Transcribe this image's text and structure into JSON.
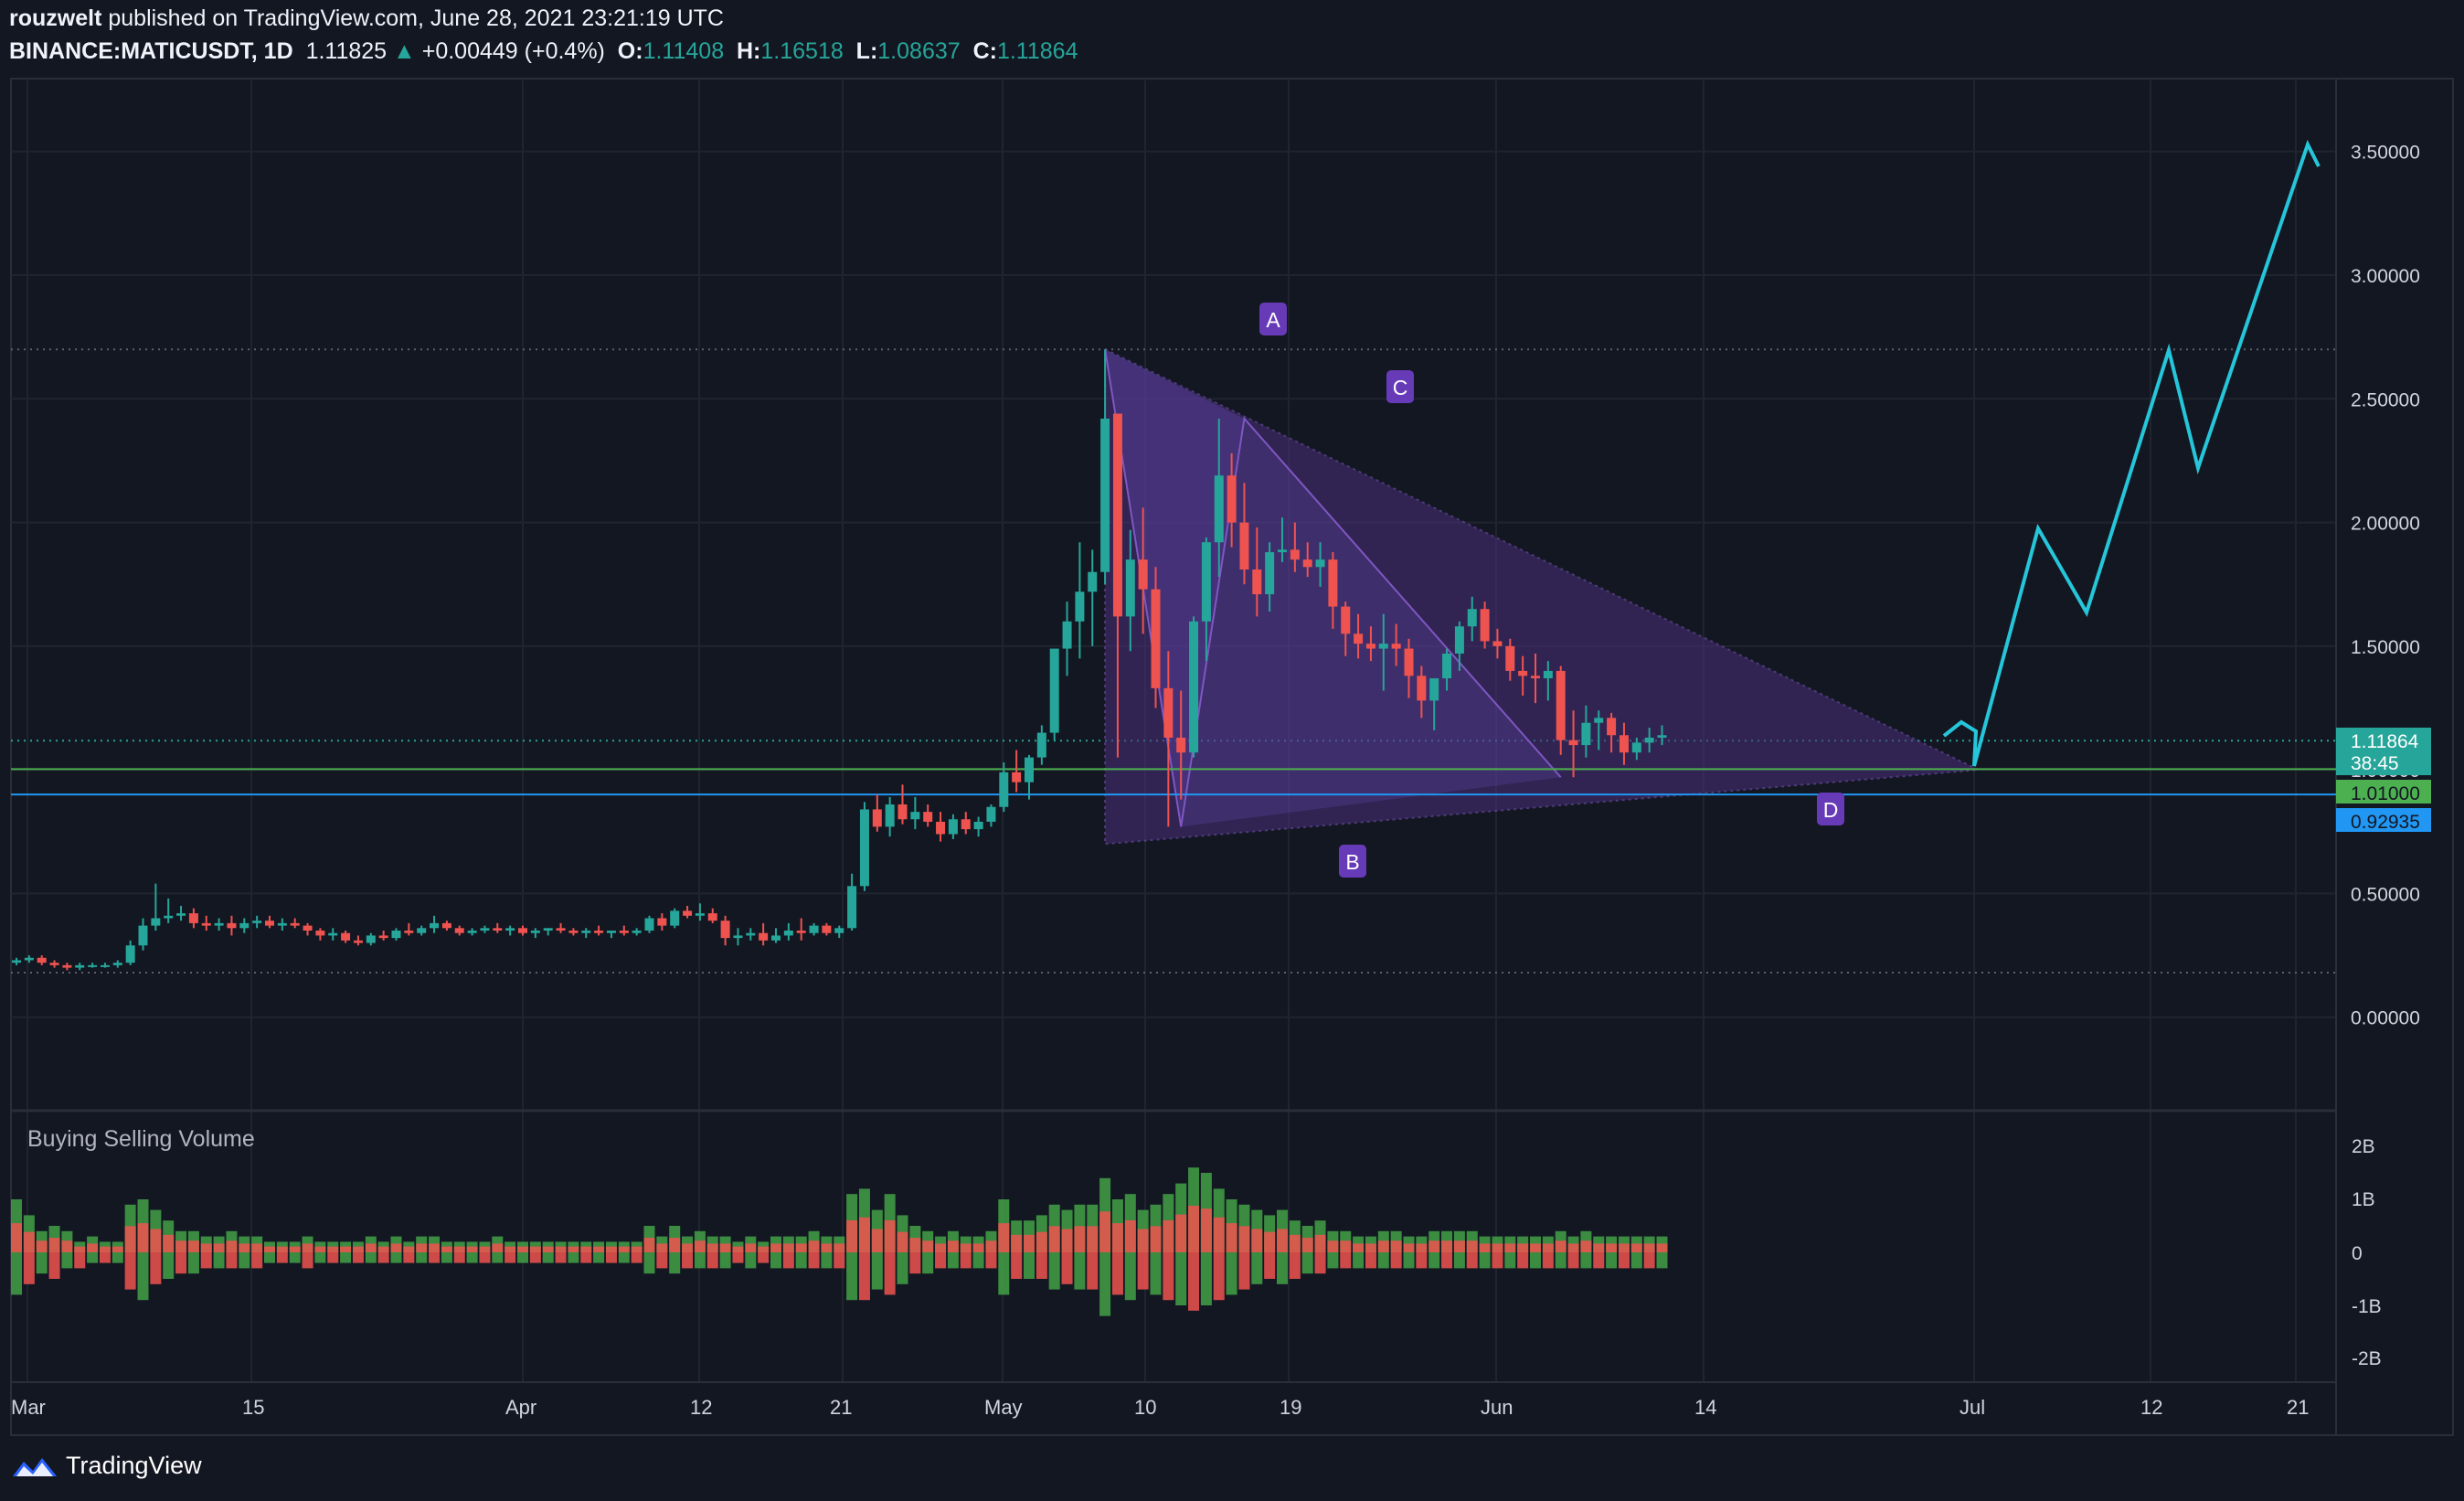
{
  "header": {
    "author": "rouzwelt",
    "published": "published on TradingView.com, June 28, 2021 23:21:19 UTC",
    "symbol": "BINANCE:MATICUSDT, 1D",
    "last": "1.11825",
    "change": "+0.00449 (+0.4%)",
    "open_label": "O:",
    "open": "1.11408",
    "high_label": "H:",
    "high": "1.16518",
    "low_label": "L:",
    "low": "1.08637",
    "close_label": "C:",
    "close": "1.11864"
  },
  "price_axis": {
    "ticks": [
      "3.50000",
      "3.00000",
      "2.50000",
      "2.00000",
      "1.50000",
      "1.00000",
      "0.50000",
      "0.00000"
    ],
    "tick_values": [
      3.5,
      3.0,
      2.5,
      2.0,
      1.5,
      1.0,
      0.5,
      0.0
    ],
    "current_price": "1.11864",
    "countdown": "38:45",
    "level_green": "1.01000",
    "level_blue": "0.92935"
  },
  "volume_axis": {
    "ticks": [
      "2B",
      "1B",
      "0",
      "-1B",
      "-2B"
    ]
  },
  "time_axis": {
    "labels": [
      "Mar",
      "15",
      "Apr",
      "12",
      "21",
      "May",
      "10",
      "19",
      "Jun",
      "14",
      "Jul",
      "12",
      "21"
    ]
  },
  "pattern_labels": [
    "A",
    "B",
    "C",
    "D"
  ],
  "indicator": {
    "title": "Buying Selling Volume"
  },
  "brand": {
    "name": "TradingView"
  },
  "colors": {
    "background": "#131722",
    "up": "#26a69a",
    "down": "#ef5350",
    "projection": "#26c6da",
    "pattern_fill": "#4a2f7a",
    "label_bg": "#673ab7",
    "green_line": "#4caf50",
    "blue_line": "#2196f3"
  },
  "chart_data": {
    "type": "candlestick",
    "title": "BINANCE:MATICUSDT, 1D",
    "ylim": [
      -0.45,
      3.85
    ],
    "candles_ohlc": [
      [
        0.22,
        0.24,
        0.21,
        0.23
      ],
      [
        0.23,
        0.25,
        0.22,
        0.24
      ],
      [
        0.24,
        0.25,
        0.21,
        0.22
      ],
      [
        0.22,
        0.23,
        0.2,
        0.21
      ],
      [
        0.21,
        0.22,
        0.19,
        0.2
      ],
      [
        0.2,
        0.22,
        0.19,
        0.21
      ],
      [
        0.21,
        0.22,
        0.2,
        0.21
      ],
      [
        0.21,
        0.22,
        0.2,
        0.21
      ],
      [
        0.21,
        0.23,
        0.2,
        0.22
      ],
      [
        0.22,
        0.31,
        0.21,
        0.29
      ],
      [
        0.29,
        0.4,
        0.27,
        0.37
      ],
      [
        0.37,
        0.54,
        0.35,
        0.4
      ],
      [
        0.4,
        0.48,
        0.38,
        0.41
      ],
      [
        0.41,
        0.45,
        0.39,
        0.42
      ],
      [
        0.42,
        0.44,
        0.36,
        0.38
      ],
      [
        0.38,
        0.41,
        0.35,
        0.37
      ],
      [
        0.37,
        0.4,
        0.35,
        0.38
      ],
      [
        0.38,
        0.41,
        0.33,
        0.36
      ],
      [
        0.36,
        0.4,
        0.34,
        0.38
      ],
      [
        0.38,
        0.41,
        0.36,
        0.39
      ],
      [
        0.39,
        0.41,
        0.36,
        0.37
      ],
      [
        0.37,
        0.4,
        0.35,
        0.38
      ],
      [
        0.38,
        0.4,
        0.36,
        0.37
      ],
      [
        0.37,
        0.38,
        0.33,
        0.35
      ],
      [
        0.35,
        0.36,
        0.31,
        0.33
      ],
      [
        0.33,
        0.36,
        0.31,
        0.34
      ],
      [
        0.34,
        0.35,
        0.3,
        0.31
      ],
      [
        0.31,
        0.33,
        0.29,
        0.3
      ],
      [
        0.3,
        0.34,
        0.29,
        0.33
      ],
      [
        0.33,
        0.35,
        0.31,
        0.32
      ],
      [
        0.32,
        0.36,
        0.31,
        0.35
      ],
      [
        0.35,
        0.38,
        0.33,
        0.34
      ],
      [
        0.34,
        0.37,
        0.33,
        0.36
      ],
      [
        0.36,
        0.41,
        0.34,
        0.38
      ],
      [
        0.38,
        0.39,
        0.35,
        0.36
      ],
      [
        0.36,
        0.37,
        0.33,
        0.34
      ],
      [
        0.34,
        0.36,
        0.33,
        0.35
      ],
      [
        0.35,
        0.37,
        0.34,
        0.36
      ],
      [
        0.36,
        0.38,
        0.34,
        0.35
      ],
      [
        0.35,
        0.37,
        0.33,
        0.36
      ],
      [
        0.36,
        0.37,
        0.33,
        0.34
      ],
      [
        0.34,
        0.36,
        0.32,
        0.35
      ],
      [
        0.35,
        0.36,
        0.33,
        0.36
      ],
      [
        0.36,
        0.38,
        0.34,
        0.35
      ],
      [
        0.35,
        0.36,
        0.33,
        0.34
      ],
      [
        0.34,
        0.36,
        0.32,
        0.35
      ],
      [
        0.35,
        0.37,
        0.33,
        0.34
      ],
      [
        0.34,
        0.35,
        0.32,
        0.35
      ],
      [
        0.35,
        0.37,
        0.33,
        0.34
      ],
      [
        0.34,
        0.36,
        0.33,
        0.35
      ],
      [
        0.35,
        0.41,
        0.34,
        0.4
      ],
      [
        0.4,
        0.42,
        0.35,
        0.37
      ],
      [
        0.37,
        0.44,
        0.36,
        0.43
      ],
      [
        0.43,
        0.45,
        0.4,
        0.41
      ],
      [
        0.41,
        0.46,
        0.39,
        0.42
      ],
      [
        0.42,
        0.44,
        0.38,
        0.39
      ],
      [
        0.39,
        0.41,
        0.29,
        0.32
      ],
      [
        0.32,
        0.36,
        0.29,
        0.33
      ],
      [
        0.33,
        0.36,
        0.31,
        0.34
      ],
      [
        0.34,
        0.38,
        0.29,
        0.31
      ],
      [
        0.31,
        0.36,
        0.3,
        0.33
      ],
      [
        0.33,
        0.38,
        0.31,
        0.35
      ],
      [
        0.35,
        0.4,
        0.31,
        0.34
      ],
      [
        0.34,
        0.38,
        0.33,
        0.37
      ],
      [
        0.37,
        0.38,
        0.33,
        0.34
      ],
      [
        0.34,
        0.37,
        0.32,
        0.36
      ],
      [
        0.36,
        0.58,
        0.35,
        0.53
      ],
      [
        0.53,
        0.87,
        0.51,
        0.84
      ],
      [
        0.84,
        0.9,
        0.75,
        0.77
      ],
      [
        0.77,
        0.89,
        0.73,
        0.86
      ],
      [
        0.86,
        0.94,
        0.78,
        0.8
      ],
      [
        0.8,
        0.89,
        0.76,
        0.83
      ],
      [
        0.83,
        0.86,
        0.77,
        0.79
      ],
      [
        0.79,
        0.83,
        0.71,
        0.74
      ],
      [
        0.74,
        0.82,
        0.72,
        0.8
      ],
      [
        0.8,
        0.83,
        0.74,
        0.76
      ],
      [
        0.76,
        0.81,
        0.73,
        0.79
      ],
      [
        0.79,
        0.86,
        0.77,
        0.85
      ],
      [
        0.85,
        1.03,
        0.83,
        0.99
      ],
      [
        0.99,
        1.08,
        0.91,
        0.95
      ],
      [
        0.95,
        1.06,
        0.88,
        1.05
      ],
      [
        1.05,
        1.18,
        1.02,
        1.15
      ],
      [
        1.15,
        1.48,
        1.12,
        1.49
      ],
      [
        1.49,
        1.68,
        1.38,
        1.6
      ],
      [
        1.6,
        1.92,
        1.45,
        1.72
      ],
      [
        1.72,
        1.89,
        1.5,
        1.8
      ],
      [
        1.8,
        2.7,
        1.75,
        2.42
      ],
      [
        2.44,
        2.44,
        1.05,
        1.62
      ],
      [
        1.62,
        1.97,
        1.48,
        1.85
      ],
      [
        1.85,
        2.06,
        1.55,
        1.73
      ],
      [
        1.73,
        1.82,
        1.25,
        1.33
      ],
      [
        1.33,
        1.48,
        0.77,
        1.13
      ],
      [
        1.13,
        1.32,
        0.88,
        1.07
      ],
      [
        1.07,
        1.62,
        1.05,
        1.6
      ],
      [
        1.6,
        1.94,
        1.44,
        1.92
      ],
      [
        1.92,
        2.42,
        1.78,
        2.19
      ],
      [
        2.19,
        2.28,
        1.9,
        2.0
      ],
      [
        2.0,
        2.16,
        1.75,
        1.81
      ],
      [
        1.81,
        1.98,
        1.62,
        1.71
      ],
      [
        1.71,
        1.92,
        1.64,
        1.88
      ],
      [
        1.88,
        2.02,
        1.84,
        1.89
      ],
      [
        1.89,
        2.0,
        1.8,
        1.85
      ],
      [
        1.85,
        1.92,
        1.78,
        1.82
      ],
      [
        1.82,
        1.92,
        1.74,
        1.85
      ],
      [
        1.85,
        1.88,
        1.57,
        1.66
      ],
      [
        1.66,
        1.68,
        1.46,
        1.55
      ],
      [
        1.55,
        1.63,
        1.45,
        1.51
      ],
      [
        1.51,
        1.58,
        1.44,
        1.49
      ],
      [
        1.49,
        1.63,
        1.32,
        1.51
      ],
      [
        1.51,
        1.59,
        1.42,
        1.49
      ],
      [
        1.49,
        1.53,
        1.29,
        1.38
      ],
      [
        1.38,
        1.42,
        1.21,
        1.28
      ],
      [
        1.28,
        1.36,
        1.16,
        1.37
      ],
      [
        1.37,
        1.49,
        1.32,
        1.47
      ],
      [
        1.47,
        1.6,
        1.4,
        1.58
      ],
      [
        1.58,
        1.7,
        1.52,
        1.65
      ],
      [
        1.65,
        1.68,
        1.49,
        1.52
      ],
      [
        1.52,
        1.57,
        1.45,
        1.5
      ],
      [
        1.5,
        1.53,
        1.36,
        1.4
      ],
      [
        1.4,
        1.46,
        1.3,
        1.38
      ],
      [
        1.38,
        1.47,
        1.27,
        1.37
      ],
      [
        1.37,
        1.44,
        1.28,
        1.4
      ],
      [
        1.4,
        1.42,
        1.06,
        1.12
      ],
      [
        1.12,
        1.24,
        0.97,
        1.1
      ],
      [
        1.1,
        1.26,
        1.05,
        1.19
      ],
      [
        1.19,
        1.24,
        1.08,
        1.21
      ],
      [
        1.21,
        1.23,
        1.07,
        1.14
      ],
      [
        1.14,
        1.19,
        1.02,
        1.07
      ],
      [
        1.07,
        1.13,
        1.04,
        1.11
      ],
      [
        1.11,
        1.17,
        1.07,
        1.13
      ],
      [
        1.13,
        1.18,
        1.1,
        1.14
      ]
    ],
    "projection_path": [
      [
        1.2
      ],
      [
        1.23
      ],
      [
        1.1
      ],
      [
        1.02
      ],
      [
        1.98
      ],
      [
        1.63
      ],
      [
        2.69
      ],
      [
        2.21
      ],
      [
        3.5
      ],
      [
        3.42
      ]
    ],
    "volume_buy_B": [
      1.0,
      0.7,
      0.4,
      0.5,
      0.4,
      0.2,
      0.3,
      0.2,
      0.2,
      0.9,
      1.0,
      0.8,
      0.6,
      0.4,
      0.4,
      0.3,
      0.3,
      0.4,
      0.3,
      0.3,
      0.2,
      0.2,
      0.2,
      0.3,
      0.2,
      0.2,
      0.2,
      0.2,
      0.3,
      0.2,
      0.3,
      0.2,
      0.3,
      0.3,
      0.2,
      0.2,
      0.2,
      0.2,
      0.3,
      0.2,
      0.2,
      0.2,
      0.2,
      0.2,
      0.2,
      0.2,
      0.2,
      0.2,
      0.2,
      0.2,
      0.5,
      0.3,
      0.5,
      0.3,
      0.4,
      0.3,
      0.3,
      0.2,
      0.3,
      0.2,
      0.3,
      0.3,
      0.3,
      0.4,
      0.3,
      0.3,
      1.1,
      1.2,
      0.8,
      1.1,
      0.7,
      0.5,
      0.4,
      0.3,
      0.4,
      0.3,
      0.3,
      0.4,
      1.0,
      0.6,
      0.6,
      0.7,
      0.9,
      0.8,
      0.9,
      0.9,
      1.4,
      1.0,
      1.1,
      0.8,
      0.9,
      1.1,
      1.3,
      1.6,
      1.5,
      1.2,
      1.0,
      0.9,
      0.8,
      0.7,
      0.8,
      0.6,
      0.5,
      0.6,
      0.4,
      0.4,
      0.3,
      0.3,
      0.4,
      0.4,
      0.3,
      0.3,
      0.4,
      0.4,
      0.4,
      0.4,
      0.3,
      0.3,
      0.3,
      0.3,
      0.3,
      0.3,
      0.4,
      0.3,
      0.4,
      0.3,
      0.3,
      0.3,
      0.3,
      0.3,
      0.3
    ],
    "volume_sell_B": [
      -0.8,
      -0.6,
      -0.4,
      -0.5,
      -0.3,
      -0.3,
      -0.2,
      -0.2,
      -0.2,
      -0.7,
      -0.9,
      -0.6,
      -0.5,
      -0.4,
      -0.4,
      -0.3,
      -0.3,
      -0.3,
      -0.3,
      -0.3,
      -0.2,
      -0.2,
      -0.2,
      -0.3,
      -0.2,
      -0.2,
      -0.2,
      -0.2,
      -0.2,
      -0.2,
      -0.2,
      -0.2,
      -0.2,
      -0.2,
      -0.2,
      -0.2,
      -0.2,
      -0.2,
      -0.2,
      -0.2,
      -0.2,
      -0.2,
      -0.2,
      -0.2,
      -0.2,
      -0.2,
      -0.2,
      -0.2,
      -0.2,
      -0.2,
      -0.4,
      -0.3,
      -0.4,
      -0.3,
      -0.3,
      -0.3,
      -0.3,
      -0.2,
      -0.3,
      -0.2,
      -0.3,
      -0.3,
      -0.3,
      -0.3,
      -0.3,
      -0.3,
      -0.9,
      -0.9,
      -0.7,
      -0.8,
      -0.6,
      -0.4,
      -0.4,
      -0.3,
      -0.3,
      -0.3,
      -0.3,
      -0.3,
      -0.8,
      -0.5,
      -0.5,
      -0.5,
      -0.7,
      -0.6,
      -0.7,
      -0.7,
      -1.2,
      -0.8,
      -0.9,
      -0.7,
      -0.8,
      -0.9,
      -1.0,
      -1.1,
      -1.0,
      -0.9,
      -0.8,
      -0.7,
      -0.6,
      -0.5,
      -0.6,
      -0.5,
      -0.4,
      -0.4,
      -0.3,
      -0.3,
      -0.3,
      -0.3,
      -0.3,
      -0.3,
      -0.3,
      -0.3,
      -0.3,
      -0.3,
      -0.3,
      -0.3,
      -0.3,
      -0.3,
      -0.3,
      -0.3,
      -0.3,
      -0.3,
      -0.3,
      -0.3,
      -0.3,
      -0.3,
      -0.3,
      -0.3,
      -0.3,
      -0.3,
      -0.3
    ]
  }
}
